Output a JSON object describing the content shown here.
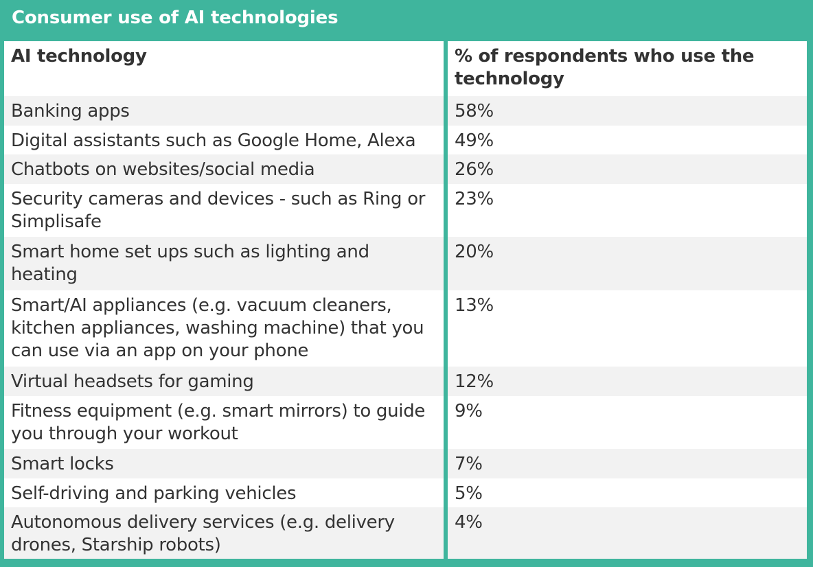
{
  "title": "Consumer use of AI technologies",
  "colors": {
    "accent": "#3fb59d",
    "row_alt": "#f2f2f2",
    "row": "#ffffff",
    "text": "#333333"
  },
  "chart_data": {
    "type": "table",
    "title": "Consumer use of AI technologies",
    "columns": [
      "AI technology",
      "% of respondents who use the technology"
    ],
    "rows": [
      {
        "technology": "Banking apps",
        "value": "58%"
      },
      {
        "technology": "Digital assistants such as Google Home, Alexa",
        "value": "49%"
      },
      {
        "technology": "Chatbots on websites/social media",
        "value": "26%"
      },
      {
        "technology": "Security cameras and devices - such as Ring or Simplisafe",
        "value": "23%"
      },
      {
        "technology": "Smart home set ups such as lighting and heating",
        "value": "20%"
      },
      {
        "technology": "Smart/AI appliances (e.g. vacuum cleaners, kitchen appliances, washing machine) that you can use via an app on your phone",
        "value": "13%"
      },
      {
        "technology": "Virtual headsets for gaming",
        "value": "12%"
      },
      {
        "technology": "Fitness equipment (e.g. smart mirrors) to guide you through your workout",
        "value": "9%"
      },
      {
        "technology": "Smart locks",
        "value": "7%"
      },
      {
        "technology": "Self-driving and parking vehicles",
        "value": "5%"
      },
      {
        "technology": "Autonomous delivery services (e.g. delivery drones, Starship robots)",
        "value": "4%"
      }
    ]
  }
}
